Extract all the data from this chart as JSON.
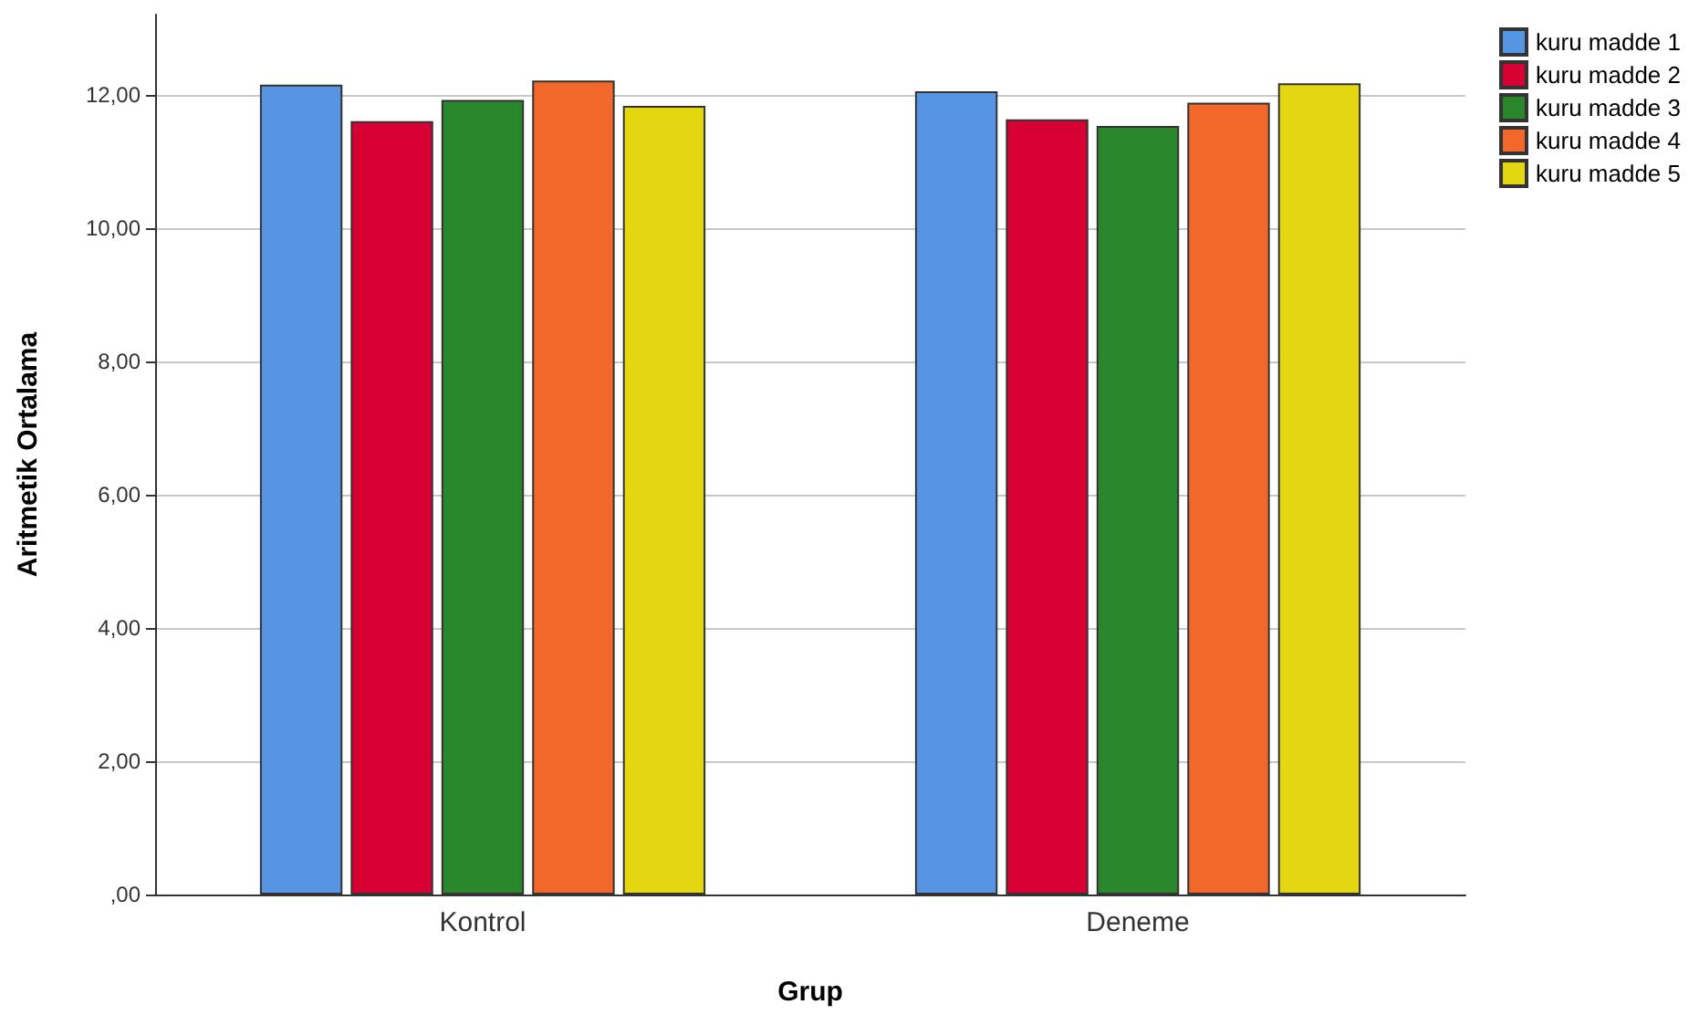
{
  "chart_data": {
    "type": "bar",
    "xlabel": "Grup",
    "ylabel": "Aritmetik Ortalama",
    "categories": [
      "Kontrol",
      "Deneme"
    ],
    "series": [
      {
        "name": "kuru madde 1",
        "color": "#5595e3",
        "values": [
          12.15,
          12.05
        ]
      },
      {
        "name": "kuru madde 2",
        "color": "#d60032",
        "values": [
          11.6,
          11.63
        ]
      },
      {
        "name": "kuru madde 3",
        "color": "#2a862a",
        "values": [
          11.92,
          11.53
        ]
      },
      {
        "name": "kuru madde 4",
        "color": "#f2682b",
        "values": [
          12.21,
          11.88
        ]
      },
      {
        "name": "kuru madde 5",
        "color": "#e2d710",
        "values": [
          11.83,
          12.17
        ]
      }
    ],
    "ylim": [
      0,
      13.2
    ],
    "yticks": [
      {
        "value": 0,
        "label": ",00"
      },
      {
        "value": 2,
        "label": "2,00"
      },
      {
        "value": 4,
        "label": "4,00"
      },
      {
        "value": 6,
        "label": "6,00"
      },
      {
        "value": 8,
        "label": "8,00"
      },
      {
        "value": 10,
        "label": "10,00"
      },
      {
        "value": 12,
        "label": "12,00"
      }
    ],
    "grid": "y",
    "legend": "top right"
  }
}
